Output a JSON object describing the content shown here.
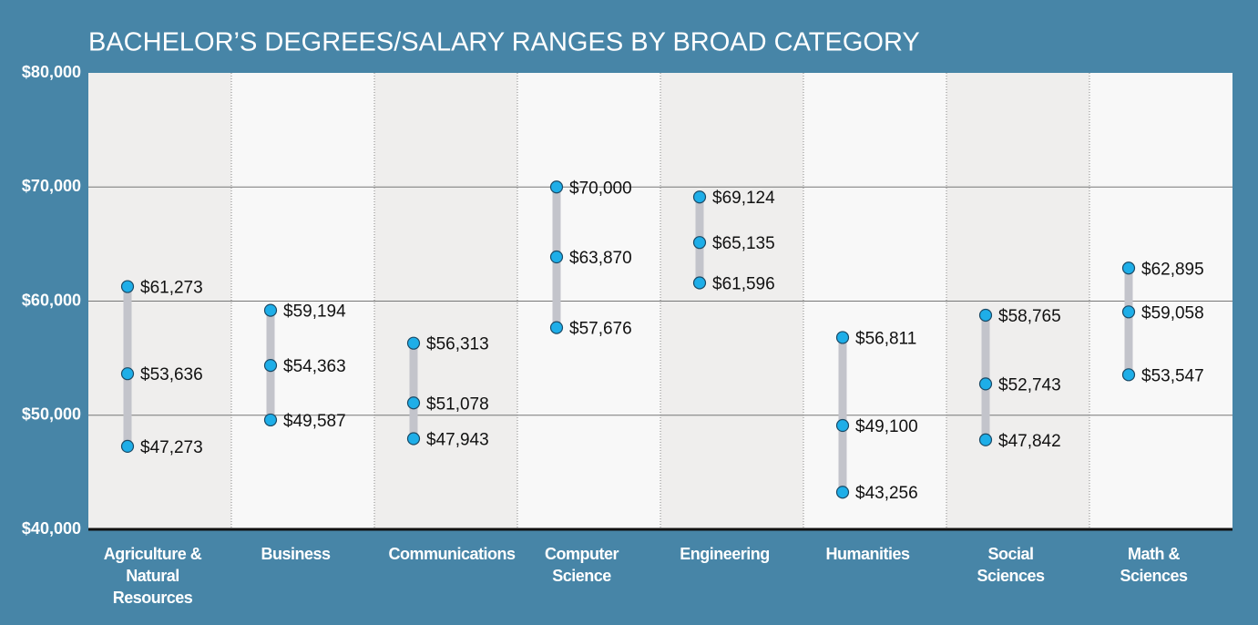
{
  "chart_data": {
    "type": "range_dot",
    "title": "BACHELOR’S DEGREES/SALARY RANGES BY BROAD CATEGORY",
    "categories": [
      "Agriculture & Natural Resources",
      "Business",
      "Communications",
      "Computer Science",
      "Engineering",
      "Humanities",
      "Social Sciences",
      "Math & Sciences"
    ],
    "series": [
      {
        "color": "#1eaee8",
        "values": [
          61273,
          59194,
          56313,
          70000,
          69124,
          56811,
          58765,
          62895
        ],
        "value_labels": [
          "$61,273",
          "$59,194",
          "$56,313",
          "$70,000",
          "$69,124",
          "$56,811",
          "$58,765",
          "$62,895"
        ]
      },
      {
        "color": "#1eaee8",
        "values": [
          53636,
          54363,
          51078,
          63870,
          65135,
          49100,
          52743,
          59058
        ],
        "value_labels": [
          "$53,636",
          "$54,363",
          "$51,078",
          "$63,870",
          "$65,135",
          "$49,100",
          "$52,743",
          "$59,058"
        ]
      },
      {
        "color": "#1eaee8",
        "values": [
          47273,
          49587,
          47943,
          57676,
          61596,
          43256,
          47842,
          53547
        ],
        "value_labels": [
          "$47,273",
          "$49,587",
          "$47,943",
          "$57,676",
          "$61,596",
          "$43,256",
          "$47,842",
          "$53,547"
        ]
      }
    ],
    "range_color": "#c3c4cb",
    "ylim": [
      40000,
      80000
    ],
    "yticks": [
      {
        "value": 40000,
        "label": "$40,000"
      },
      {
        "value": 50000,
        "label": "$50,000"
      },
      {
        "value": 60000,
        "label": "$60,000"
      },
      {
        "value": 70000,
        "label": "$70,000"
      },
      {
        "value": 80000,
        "label": "$80,000"
      }
    ],
    "grid": true
  }
}
